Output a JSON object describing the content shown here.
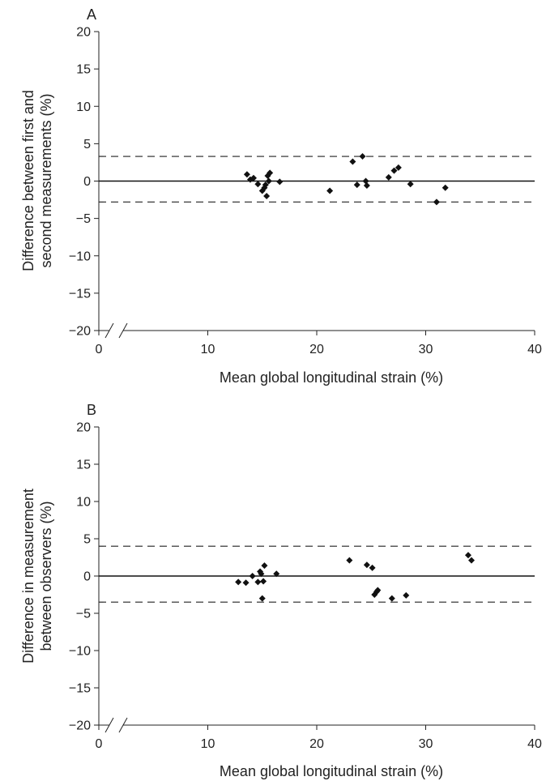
{
  "chart_data": [
    {
      "type": "scatter",
      "panel": "A",
      "xlabel": "Mean global longitudinal strain (%)",
      "ylabel_lines": [
        "Difference between first and",
        "second measurements (%)"
      ],
      "xlim": [
        0,
        40
      ],
      "ylim": [
        -20,
        20
      ],
      "xticks": [
        0,
        10,
        20,
        30,
        40
      ],
      "yticks": [
        20,
        15,
        10,
        5,
        0,
        -5,
        -10,
        -15,
        -20
      ],
      "x_axis_break": true,
      "reference_lines": {
        "mean": 0,
        "upper_limit": 3.3,
        "lower_limit": -2.8
      },
      "points": [
        {
          "x": 13.6,
          "y": 0.9
        },
        {
          "x": 13.9,
          "y": 0.2
        },
        {
          "x": 14.2,
          "y": 0.4
        },
        {
          "x": 14.6,
          "y": -0.4
        },
        {
          "x": 15.0,
          "y": -1.3
        },
        {
          "x": 15.2,
          "y": -0.9
        },
        {
          "x": 15.3,
          "y": -0.5
        },
        {
          "x": 15.4,
          "y": -2.0
        },
        {
          "x": 15.5,
          "y": 0.7
        },
        {
          "x": 15.6,
          "y": 0.0
        },
        {
          "x": 15.7,
          "y": 1.1
        },
        {
          "x": 16.6,
          "y": -0.1
        },
        {
          "x": 21.2,
          "y": -1.3
        },
        {
          "x": 23.3,
          "y": 2.6
        },
        {
          "x": 23.7,
          "y": -0.5
        },
        {
          "x": 24.2,
          "y": 3.3
        },
        {
          "x": 24.5,
          "y": 0.0
        },
        {
          "x": 24.6,
          "y": -0.6
        },
        {
          "x": 26.6,
          "y": 0.5
        },
        {
          "x": 27.1,
          "y": 1.4
        },
        {
          "x": 27.5,
          "y": 1.8
        },
        {
          "x": 28.6,
          "y": -0.4
        },
        {
          "x": 31.0,
          "y": -2.8
        },
        {
          "x": 31.8,
          "y": -0.9
        }
      ]
    },
    {
      "type": "scatter",
      "panel": "B",
      "xlabel": "Mean global longitudinal strain (%)",
      "ylabel_lines": [
        "Difference in measurement",
        "between observers (%)"
      ],
      "xlim": [
        0,
        40
      ],
      "ylim": [
        -20,
        20
      ],
      "xticks": [
        0,
        10,
        20,
        30,
        40
      ],
      "yticks": [
        20,
        15,
        10,
        5,
        0,
        -5,
        -10,
        -15,
        -20
      ],
      "x_axis_break": true,
      "reference_lines": {
        "mean": 0,
        "upper_limit": 4.0,
        "lower_limit": -3.5
      },
      "points": [
        {
          "x": 12.8,
          "y": -0.8
        },
        {
          "x": 13.5,
          "y": -0.9
        },
        {
          "x": 14.1,
          "y": 0.0
        },
        {
          "x": 14.6,
          "y": -0.8
        },
        {
          "x": 14.8,
          "y": 0.6
        },
        {
          "x": 14.9,
          "y": 0.3
        },
        {
          "x": 15.0,
          "y": -3.0
        },
        {
          "x": 15.1,
          "y": -0.7
        },
        {
          "x": 15.2,
          "y": 1.4
        },
        {
          "x": 16.3,
          "y": 0.3
        },
        {
          "x": 23.0,
          "y": 2.1
        },
        {
          "x": 24.6,
          "y": 1.5
        },
        {
          "x": 25.1,
          "y": 1.1
        },
        {
          "x": 25.3,
          "y": -2.5
        },
        {
          "x": 25.5,
          "y": -2.1
        },
        {
          "x": 25.6,
          "y": -1.9
        },
        {
          "x": 26.9,
          "y": -3.0
        },
        {
          "x": 28.2,
          "y": -2.6
        },
        {
          "x": 33.9,
          "y": 2.8
        },
        {
          "x": 34.2,
          "y": 2.1
        }
      ]
    }
  ]
}
